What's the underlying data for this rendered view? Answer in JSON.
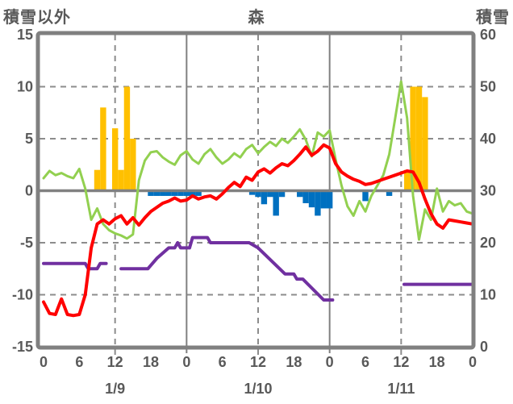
{
  "header": {
    "left_axis_title": "積雪以外",
    "chart_title": "森",
    "right_axis_title": "積雪"
  },
  "chart_data": {
    "type": "bar+line dual-axis time series",
    "title": "森",
    "left_axis": {
      "title": "積雪以外",
      "min": -15,
      "max": 15,
      "ticks": [
        15,
        10,
        5,
        0,
        -5,
        -10,
        -15
      ]
    },
    "right_axis": {
      "title": "積雪",
      "min": 0,
      "max": 60,
      "ticks": [
        60,
        50,
        40,
        30,
        20,
        10,
        0
      ]
    },
    "x_axis": {
      "total_hours": 72,
      "tick_hours": [
        0,
        6,
        12,
        18,
        24,
        30,
        36,
        42,
        48,
        54,
        60,
        66,
        72
      ],
      "tick_labels": [
        "0",
        "6",
        "12",
        "18",
        "0",
        "6",
        "12",
        "18",
        "0",
        "6",
        "12",
        "18",
        "0"
      ],
      "day_labels": [
        {
          "label": "1/9",
          "hour": 12
        },
        {
          "label": "1/10",
          "hour": 36
        },
        {
          "label": "1/11",
          "hour": 60
        }
      ]
    },
    "gridlines": {
      "y_dashed_values_left_axis": [
        10,
        5,
        -5,
        -10
      ],
      "x_dashed_hours": [
        12,
        36,
        60
      ],
      "x_solid_hours": [
        24,
        48
      ],
      "zero_line_left_axis": 0
    },
    "colors": {
      "orange_bars": "#FFC000",
      "blue_bars": "#0070C0",
      "red_line": "#FF0000",
      "green_line": "#92D050",
      "purple_line": "#7030A0",
      "frame_gray": "#808080",
      "grid_gray": "#8C8C8C",
      "text_gray": "#595959"
    },
    "series": {
      "orange_bars": {
        "name": "orange-bars",
        "axis": "left",
        "color": "#FFC000",
        "bars": [
          {
            "hour": 9,
            "value": 2
          },
          {
            "hour": 10,
            "value": 8
          },
          {
            "hour": 12,
            "value": 6
          },
          {
            "hour": 13,
            "value": 2
          },
          {
            "hour": 14,
            "value": 10
          },
          {
            "hour": 15,
            "value": 5
          },
          {
            "hour": 61,
            "value": 2
          },
          {
            "hour": 62,
            "value": 10
          },
          {
            "hour": 63,
            "value": 10
          },
          {
            "hour": 64,
            "value": 9
          }
        ]
      },
      "blue_bars": {
        "name": "blue-bars",
        "axis": "left",
        "color": "#0070C0",
        "bars": [
          {
            "hour": 18,
            "value": -0.5
          },
          {
            "hour": 19,
            "value": -0.5
          },
          {
            "hour": 20,
            "value": -0.5
          },
          {
            "hour": 21,
            "value": -0.5
          },
          {
            "hour": 22,
            "value": -0.5
          },
          {
            "hour": 23,
            "value": -0.5
          },
          {
            "hour": 24,
            "value": -0.5
          },
          {
            "hour": 25,
            "value": -0.5
          },
          {
            "hour": 26,
            "value": -0.5
          },
          {
            "hour": 35,
            "value": -0.4
          },
          {
            "hour": 36,
            "value": -0.6
          },
          {
            "hour": 37,
            "value": -1.3
          },
          {
            "hour": 38,
            "value": -0.6
          },
          {
            "hour": 39,
            "value": -2.4
          },
          {
            "hour": 40,
            "value": -0.6
          },
          {
            "hour": 43,
            "value": -0.6
          },
          {
            "hour": 44,
            "value": -1.2
          },
          {
            "hour": 45,
            "value": -1.6
          },
          {
            "hour": 46,
            "value": -2.4
          },
          {
            "hour": 47,
            "value": -1.7
          },
          {
            "hour": 48,
            "value": -1.7
          },
          {
            "hour": 54,
            "value": -1.0
          },
          {
            "hour": 58,
            "value": -0.5
          }
        ]
      },
      "red_line": {
        "name": "red-line",
        "axis": "left",
        "color": "#FF0000",
        "points": [
          [
            0,
            -10.7
          ],
          [
            1,
            -11.8
          ],
          [
            2,
            -11.9
          ],
          [
            3,
            -10.4
          ],
          [
            4,
            -11.9
          ],
          [
            5,
            -12.0
          ],
          [
            6,
            -11.9
          ],
          [
            7,
            -10.0
          ],
          [
            8,
            -5.5
          ],
          [
            9,
            -3.2
          ],
          [
            10,
            -2.8
          ],
          [
            11,
            -3.2
          ],
          [
            12,
            -2.7
          ],
          [
            13,
            -2.4
          ],
          [
            14,
            -3.2
          ],
          [
            15,
            -2.6
          ],
          [
            16,
            -3.3
          ],
          [
            17,
            -2.6
          ],
          [
            18,
            -2.0
          ],
          [
            19,
            -1.6
          ],
          [
            20,
            -1.2
          ],
          [
            21,
            -1.0
          ],
          [
            22,
            -0.7
          ],
          [
            23,
            -1.0
          ],
          [
            24,
            -0.9
          ],
          [
            25,
            -0.5
          ],
          [
            26,
            -0.8
          ],
          [
            27,
            -0.6
          ],
          [
            28,
            -0.5
          ],
          [
            29,
            -0.8
          ],
          [
            30,
            -0.3
          ],
          [
            31,
            0.3
          ],
          [
            32,
            0.8
          ],
          [
            33,
            0.4
          ],
          [
            34,
            1.3
          ],
          [
            35,
            1.0
          ],
          [
            36,
            1.8
          ],
          [
            37,
            2.1
          ],
          [
            38,
            1.7
          ],
          [
            39,
            2.2
          ],
          [
            40,
            2.6
          ],
          [
            41,
            2.4
          ],
          [
            42,
            2.9
          ],
          [
            43,
            3.5
          ],
          [
            44,
            4.2
          ],
          [
            45,
            3.4
          ],
          [
            46,
            3.8
          ],
          [
            47,
            4.4
          ],
          [
            48,
            4.1
          ],
          [
            49,
            2.6
          ],
          [
            50,
            1.8
          ],
          [
            51,
            1.4
          ],
          [
            52,
            1.1
          ],
          [
            53,
            0.9
          ],
          [
            54,
            0.6
          ],
          [
            55,
            0.7
          ],
          [
            56,
            0.9
          ],
          [
            57,
            1.1
          ],
          [
            58,
            1.3
          ],
          [
            59,
            1.5
          ],
          [
            60,
            1.7
          ],
          [
            61,
            1.9
          ],
          [
            62,
            1.8
          ],
          [
            63,
            0.8
          ],
          [
            64,
            -0.8
          ],
          [
            65,
            -2.2
          ],
          [
            66,
            -3.2
          ],
          [
            67,
            -3.6
          ],
          [
            68,
            -2.8
          ],
          [
            69,
            -2.9
          ],
          [
            70,
            -3.0
          ],
          [
            71,
            -3.1
          ],
          [
            72,
            -3.2
          ]
        ]
      },
      "green_line": {
        "name": "green-line",
        "axis": "left",
        "color": "#92D050",
        "points": [
          [
            0,
            1.2
          ],
          [
            1,
            1.9
          ],
          [
            2,
            1.5
          ],
          [
            3,
            1.7
          ],
          [
            4,
            1.4
          ],
          [
            5,
            1.2
          ],
          [
            6,
            2.1
          ],
          [
            7,
            0.2
          ],
          [
            8,
            -2.8
          ],
          [
            9,
            -1.7
          ],
          [
            10,
            -3.2
          ],
          [
            11,
            -3.8
          ],
          [
            12,
            -4.1
          ],
          [
            13,
            -4.3
          ],
          [
            14,
            -4.6
          ],
          [
            15,
            -4.2
          ],
          [
            16,
            1.0
          ],
          [
            17,
            2.9
          ],
          [
            18,
            3.7
          ],
          [
            19,
            3.8
          ],
          [
            20,
            3.2
          ],
          [
            21,
            2.8
          ],
          [
            22,
            2.5
          ],
          [
            23,
            3.4
          ],
          [
            24,
            3.8
          ],
          [
            25,
            3.0
          ],
          [
            26,
            2.6
          ],
          [
            27,
            3.5
          ],
          [
            28,
            4.0
          ],
          [
            29,
            3.2
          ],
          [
            30,
            2.6
          ],
          [
            31,
            3.0
          ],
          [
            32,
            3.6
          ],
          [
            33,
            3.2
          ],
          [
            34,
            4.0
          ],
          [
            35,
            4.4
          ],
          [
            36,
            3.6
          ],
          [
            37,
            4.2
          ],
          [
            38,
            4.7
          ],
          [
            39,
            4.3
          ],
          [
            40,
            5.0
          ],
          [
            41,
            4.6
          ],
          [
            42,
            5.2
          ],
          [
            43,
            5.9
          ],
          [
            44,
            4.9
          ],
          [
            45,
            3.3
          ],
          [
            46,
            5.6
          ],
          [
            47,
            5.2
          ],
          [
            48,
            5.8
          ],
          [
            49,
            3.0
          ],
          [
            50,
            0.5
          ],
          [
            51,
            -1.5
          ],
          [
            52,
            -2.4
          ],
          [
            53,
            -1.0
          ],
          [
            54,
            -2.0
          ],
          [
            55,
            -0.5
          ],
          [
            56,
            0.5
          ],
          [
            57,
            1.5
          ],
          [
            58,
            3.5
          ],
          [
            59,
            7.0
          ],
          [
            60,
            10.5
          ],
          [
            61,
            7.0
          ],
          [
            62,
            -0.5
          ],
          [
            63,
            -4.7
          ],
          [
            64,
            -1.8
          ],
          [
            65,
            -2.8
          ],
          [
            66,
            0.2
          ],
          [
            67,
            -2.0
          ],
          [
            68,
            -1.0
          ],
          [
            69,
            -1.4
          ],
          [
            70,
            -1.2
          ],
          [
            71,
            -2.0
          ],
          [
            72,
            -2.2
          ]
        ]
      },
      "purple_line": {
        "name": "purple-line",
        "axis": "right",
        "color": "#7030A0",
        "segments": [
          [
            [
              0,
              16
            ],
            [
              7,
              16
            ],
            [
              7.5,
              15
            ],
            [
              9,
              15
            ],
            [
              9.5,
              16
            ],
            [
              10.5,
              16
            ]
          ],
          [
            [
              13,
              15
            ],
            [
              17.5,
              15
            ],
            [
              19,
              17
            ],
            [
              20,
              18
            ],
            [
              21,
              19
            ],
            [
              22,
              19
            ],
            [
              22.5,
              20
            ],
            [
              23,
              19
            ],
            [
              24.5,
              19
            ],
            [
              25,
              21
            ],
            [
              27.5,
              21
            ],
            [
              28,
              20
            ],
            [
              34.5,
              20
            ],
            [
              36,
              19
            ],
            [
              40.5,
              14
            ],
            [
              42,
              14
            ],
            [
              42.5,
              13
            ],
            [
              43.5,
              13
            ],
            [
              47,
              9
            ],
            [
              48.5,
              9
            ]
          ],
          [
            [
              60.5,
              12
            ],
            [
              72,
              12
            ]
          ]
        ]
      }
    }
  }
}
